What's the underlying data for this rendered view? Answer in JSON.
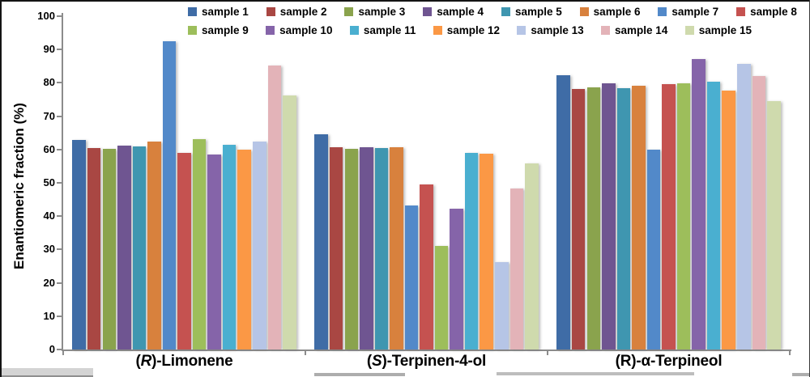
{
  "chart_data": {
    "type": "bar",
    "title": "",
    "xlabel": "",
    "ylabel": "Enantiomeric fraction (%)",
    "ylim": [
      0,
      100
    ],
    "yticks": [
      0,
      10,
      20,
      30,
      40,
      50,
      60,
      70,
      80,
      90,
      100
    ],
    "grid": false,
    "legend_position": "top",
    "axis_color": "#8C8C8C",
    "categories": [
      "(R)-Limonene",
      "(S)-Terpinen-4-ol",
      "(R)-α-Terpineol"
    ],
    "categories_rich": [
      {
        "pre": "(",
        "letter": "R",
        "letter_italic": true,
        "rest": ")-Limonene"
      },
      {
        "pre": "(",
        "letter": "S",
        "letter_italic": true,
        "rest": ")-Terpinen-4-ol"
      },
      {
        "pre": "(",
        "letter": "R",
        "letter_italic": false,
        "rest": ")-α-Terpineol"
      }
    ],
    "series": [
      {
        "name": "sample 1",
        "color": "#3F6CA6",
        "values": [
          62.8,
          64.5,
          82.4
        ]
      },
      {
        "name": "sample 2",
        "color": "#A94743",
        "values": [
          60.5,
          60.6,
          78.2
        ]
      },
      {
        "name": "sample 3",
        "color": "#8AA34D",
        "values": [
          60.3,
          60.1,
          78.7
        ]
      },
      {
        "name": "sample 4",
        "color": "#6F5591",
        "values": [
          61.1,
          60.8,
          79.9
        ]
      },
      {
        "name": "sample 5",
        "color": "#3F96B0",
        "values": [
          61.0,
          60.4,
          78.5
        ]
      },
      {
        "name": "sample 6",
        "color": "#D8813D",
        "values": [
          62.5,
          60.8,
          79.2
        ]
      },
      {
        "name": "sample 7",
        "color": "#5289C9",
        "values": [
          92.5,
          43.2,
          59.9
        ]
      },
      {
        "name": "sample 8",
        "color": "#C55250",
        "values": [
          59.0,
          49.6,
          79.6
        ]
      },
      {
        "name": "sample 9",
        "color": "#9DBE5B",
        "values": [
          63.0,
          31.1,
          79.9
        ]
      },
      {
        "name": "sample 10",
        "color": "#8564A9",
        "values": [
          58.4,
          42.2,
          87.2
        ]
      },
      {
        "name": "sample 11",
        "color": "#4AAFD0",
        "values": [
          61.3,
          58.9,
          80.4
        ]
      },
      {
        "name": "sample 12",
        "color": "#FB9845",
        "values": [
          60.0,
          58.8,
          77.6
        ]
      },
      {
        "name": "sample 13",
        "color": "#B6C5E6",
        "values": [
          62.5,
          26.3,
          85.8
        ]
      },
      {
        "name": "sample 14",
        "color": "#E3B3B8",
        "values": [
          85.2,
          48.4,
          82.0
        ]
      },
      {
        "name": "sample 15",
        "color": "#CFDAAD",
        "values": [
          76.3,
          55.8,
          74.4
        ]
      }
    ],
    "legend_rows": [
      8,
      7
    ]
  }
}
